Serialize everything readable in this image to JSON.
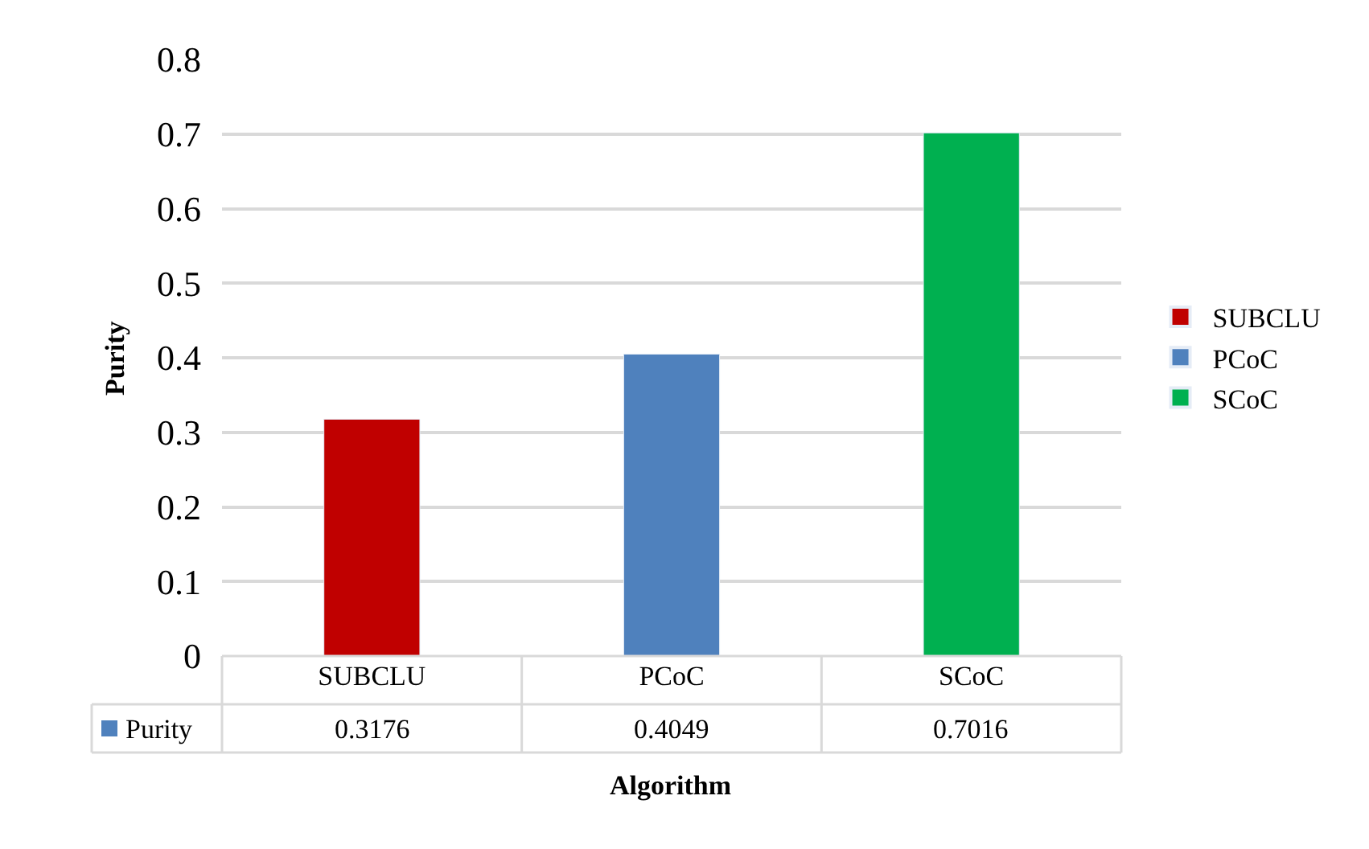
{
  "chart_data": {
    "type": "bar",
    "xlabel": "Algorithm",
    "ylabel": "Purity",
    "categories": [
      "SUBCLU",
      "PCoC",
      "SCoC"
    ],
    "series": [
      {
        "name": "SUBCLU",
        "color": "#c00000",
        "values": [
          0.3176,
          null,
          null
        ]
      },
      {
        "name": "PCoC",
        "color": "#4f81bd",
        "values": [
          null,
          0.4049,
          null
        ]
      },
      {
        "name": "SCoC",
        "color": "#00b050",
        "values": [
          null,
          null,
          0.7016
        ]
      }
    ],
    "annotations": [
      "Purity"
    ],
    "ylim": [
      0,
      0.8
    ],
    "yticks": [
      0,
      0.1,
      0.2,
      0.3,
      0.4,
      0.5,
      0.6,
      0.7,
      0.8
    ],
    "grid": "y",
    "legend": "right",
    "data_labels": true
  }
}
